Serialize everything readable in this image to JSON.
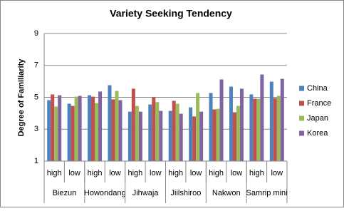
{
  "chart_data": {
    "type": "bar",
    "title": "Variety Seeking Tendency",
    "y_label": "Degree of Familiarity",
    "categories": [
      "high",
      "low",
      "high",
      "low",
      "high",
      "low",
      "high",
      "low",
      "high",
      "low",
      "high",
      "low"
    ],
    "groups": [
      "Biezun",
      "Howondang",
      "Jihwaja",
      "Jiilshiroo",
      "Nakwon",
      "Samrip mini"
    ],
    "series": [
      {
        "name": "China",
        "color": "#4f81bd",
        "values": [
          4.82,
          4.6,
          5.13,
          5.76,
          4.1,
          4.55,
          4.15,
          4.37,
          5.27,
          5.67,
          5.18,
          5.98
        ]
      },
      {
        "name": "France",
        "color": "#c0504d",
        "values": [
          5.18,
          4.46,
          5.04,
          4.87,
          5.54,
          5.0,
          4.78,
          3.8,
          4.24,
          4.06,
          4.91,
          4.95
        ]
      },
      {
        "name": "Japan",
        "color": "#9bbb59",
        "values": [
          4.42,
          5.04,
          4.64,
          5.4,
          4.46,
          4.7,
          4.6,
          5.27,
          4.28,
          4.46,
          4.91,
          5.09
        ]
      },
      {
        "name": "Korea",
        "color": "#8064a2",
        "values": [
          5.13,
          5.09,
          5.36,
          4.82,
          4.1,
          4.15,
          3.97,
          4.1,
          6.12,
          5.54,
          6.43,
          6.16
        ]
      }
    ],
    "ylim": [
      1,
      9
    ],
    "yticks": [
      1,
      3,
      5,
      7,
      9
    ],
    "grid": true,
    "legend": "right"
  }
}
